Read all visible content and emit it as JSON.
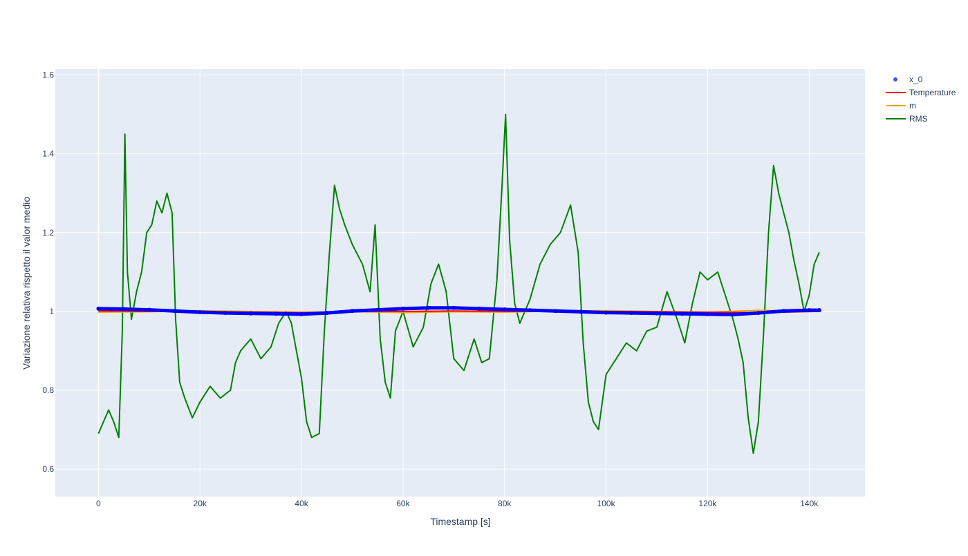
{
  "chart_data": {
    "type": "line",
    "title": "",
    "xlabel": "Timestamp [s]",
    "ylabel": "Variazione relativa rispetto il valor medio",
    "xlim": [
      -8500,
      151000
    ],
    "ylim": [
      0.53,
      1.615
    ],
    "grid": true,
    "legend_position": "top-right, outside plot",
    "x_ticks": [
      {
        "value": 0,
        "label": "0"
      },
      {
        "value": 20000,
        "label": "20k"
      },
      {
        "value": 40000,
        "label": "40k"
      },
      {
        "value": 60000,
        "label": "60k"
      },
      {
        "value": 80000,
        "label": "80k"
      },
      {
        "value": 100000,
        "label": "100k"
      },
      {
        "value": 120000,
        "label": "120k"
      },
      {
        "value": 140000,
        "label": "140k"
      }
    ],
    "y_ticks": [
      {
        "value": 0.6,
        "label": "0.6"
      },
      {
        "value": 0.8,
        "label": "0.8"
      },
      {
        "value": 1.0,
        "label": "1"
      },
      {
        "value": 1.2,
        "label": "1.2"
      },
      {
        "value": 1.4,
        "label": "1.4"
      },
      {
        "value": 1.6,
        "label": "1.6"
      }
    ],
    "colors": {
      "plot_bg": "#e5ecf6",
      "grid": "#ffffff",
      "axis_text": "#2a3f5f",
      "x_0": "#0000ff",
      "Temperature": "#ff0000",
      "m": "#ffa500",
      "RMS": "#008000"
    },
    "series": [
      {
        "name": "x_0",
        "mode": "markers",
        "x": [
          0,
          5000,
          10000,
          15000,
          20000,
          25000,
          30000,
          35000,
          40000,
          45000,
          50000,
          55000,
          60000,
          65000,
          70000,
          75000,
          80000,
          85000,
          90000,
          95000,
          100000,
          105000,
          110000,
          115000,
          120000,
          125000,
          130000,
          135000,
          140000,
          142000
        ],
        "y": [
          1.007,
          1.006,
          1.004,
          1.001,
          0.998,
          0.996,
          0.995,
          0.994,
          0.993,
          0.996,
          1.001,
          1.004,
          1.007,
          1.009,
          1.009,
          1.007,
          1.005,
          1.003,
          1.001,
          0.999,
          0.997,
          0.996,
          0.995,
          0.994,
          0.993,
          0.992,
          0.996,
          1.001,
          1.003,
          1.003
        ]
      },
      {
        "name": "Temperature",
        "mode": "lines",
        "x": [
          0,
          10000,
          20000,
          30000,
          40000,
          50000,
          60000,
          70000,
          80000,
          90000,
          100000,
          110000,
          120000,
          130000,
          142000
        ],
        "y": [
          1.001,
          1.0,
          0.999,
          0.998,
          0.997,
          0.999,
          1.0,
          1.001,
          1.0,
          1.0,
          1.0,
          0.999,
          0.998,
          0.997,
          1.0
        ]
      },
      {
        "name": "m",
        "mode": "lines",
        "x": [
          0,
          10000,
          20000,
          30000,
          40000,
          50000,
          60000,
          70000,
          80000,
          90000,
          100000,
          110000,
          120000,
          130000,
          142000
        ],
        "y": [
          0.998,
          0.999,
          1.002,
          1.0,
          0.998,
          1.0,
          0.997,
          0.999,
          0.998,
          1.001,
          1.002,
          1.0,
          0.998,
          1.003,
          1.0
        ]
      },
      {
        "name": "RMS",
        "mode": "lines",
        "x": [
          0,
          1000,
          2000,
          3000,
          4000,
          4700,
          5200,
          5700,
          6500,
          7500,
          8500,
          9500,
          10500,
          11500,
          12500,
          13500,
          14500,
          15200,
          16000,
          17000,
          18500,
          20000,
          22000,
          24000,
          26000,
          27000,
          28000,
          30000,
          32000,
          34000,
          35500,
          37000,
          38000,
          39000,
          40000,
          41000,
          42000,
          43500,
          44500,
          45500,
          46500,
          47500,
          48500,
          50000,
          52000,
          53500,
          54500,
          55500,
          56500,
          57500,
          58500,
          60000,
          62000,
          64000,
          65500,
          67000,
          68500,
          70000,
          72000,
          74000,
          75500,
          77000,
          78500,
          79500,
          80200,
          81000,
          82000,
          83000,
          85000,
          87000,
          89000,
          91000,
          93000,
          94500,
          95500,
          96500,
          97500,
          98500,
          100000,
          102000,
          104000,
          106000,
          108000,
          110000,
          112000,
          114000,
          115500,
          117000,
          118500,
          120000,
          122000,
          124000,
          125000,
          126000,
          127000,
          128000,
          129000,
          130000,
          131000,
          132000,
          133000,
          134000,
          135000,
          136000,
          137000,
          138000,
          139000,
          140000,
          141000,
          142000
        ],
        "y": [
          0.69,
          0.72,
          0.75,
          0.72,
          0.68,
          0.95,
          1.45,
          1.1,
          0.98,
          1.05,
          1.1,
          1.2,
          1.22,
          1.28,
          1.25,
          1.3,
          1.25,
          0.98,
          0.82,
          0.78,
          0.73,
          0.77,
          0.81,
          0.78,
          0.8,
          0.87,
          0.9,
          0.93,
          0.88,
          0.91,
          0.97,
          1.0,
          0.97,
          0.9,
          0.83,
          0.72,
          0.68,
          0.69,
          0.95,
          1.15,
          1.32,
          1.26,
          1.22,
          1.17,
          1.12,
          1.05,
          1.22,
          0.93,
          0.82,
          0.78,
          0.95,
          1.0,
          0.91,
          0.96,
          1.07,
          1.12,
          1.05,
          0.88,
          0.85,
          0.93,
          0.87,
          0.88,
          1.08,
          1.32,
          1.5,
          1.18,
          1.02,
          0.97,
          1.03,
          1.12,
          1.17,
          1.2,
          1.27,
          1.15,
          0.92,
          0.77,
          0.72,
          0.7,
          0.84,
          0.88,
          0.92,
          0.9,
          0.95,
          0.96,
          1.05,
          0.98,
          0.92,
          1.02,
          1.1,
          1.08,
          1.1,
          1.02,
          0.98,
          0.93,
          0.87,
          0.73,
          0.64,
          0.72,
          0.94,
          1.2,
          1.37,
          1.3,
          1.25,
          1.2,
          1.13,
          1.07,
          1.0,
          1.04,
          1.12,
          1.15
        ]
      }
    ]
  }
}
